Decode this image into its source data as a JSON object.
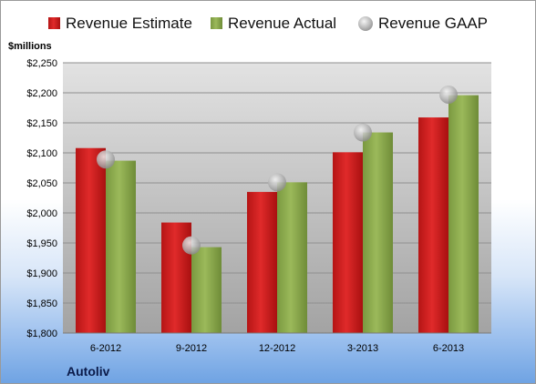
{
  "chart_data": {
    "type": "bar",
    "ylabel": "$millions",
    "company": "Autoliv",
    "categories": [
      "6-2012",
      "9-2012",
      "12-2012",
      "3-2013",
      "6-2013"
    ],
    "ylim": [
      1800,
      2250
    ],
    "yticks": [
      "$1,800",
      "$1,850",
      "$1,900",
      "$1,950",
      "$2,000",
      "$2,050",
      "$2,100",
      "$2,150",
      "$2,200",
      "$2,250"
    ],
    "ytick_values": [
      1800,
      1850,
      1900,
      1950,
      2000,
      2050,
      2100,
      2150,
      2200,
      2250
    ],
    "grid": true,
    "legend_position": "top",
    "series": [
      {
        "name": "Revenue Estimate",
        "kind": "bar",
        "color": "#d42222",
        "values": [
          2108,
          1984,
          2035,
          2101,
          2159
        ]
      },
      {
        "name": "Revenue Actual",
        "kind": "bar",
        "color": "#8caa4c",
        "values": [
          2087,
          1943,
          2051,
          2134,
          2196
        ]
      },
      {
        "name": "Revenue GAAP",
        "kind": "marker",
        "color": "#b4b4b4",
        "values": [
          2089,
          1946,
          2051,
          2134,
          2197
        ]
      }
    ]
  }
}
